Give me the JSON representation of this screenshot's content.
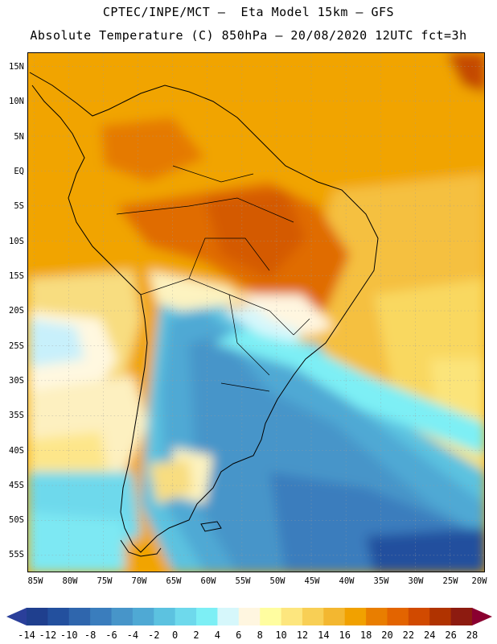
{
  "title": {
    "line1": "CPTEC/INPE/MCT –  Eta Model 15km – GFS",
    "line2": "Absolute Temperature (C) 850hPa – 20/08/2020 12UTC fct=3h"
  },
  "map": {
    "lat_labels": [
      "15N",
      "10N",
      "5N",
      "EQ",
      "5S",
      "10S",
      "15S",
      "20S",
      "25S",
      "30S",
      "35S",
      "40S",
      "45S",
      "50S",
      "55S"
    ],
    "lon_labels": [
      "85W",
      "80W",
      "75W",
      "70W",
      "65W",
      "60W",
      "55W",
      "50W",
      "45W",
      "40W",
      "35W",
      "30W",
      "25W",
      "20W"
    ],
    "lat_range": [
      -57,
      17
    ],
    "lon_range": [
      -86,
      -20
    ]
  },
  "colorbar": {
    "labels": [
      "-14",
      "-12",
      "-10",
      "-8",
      "-6",
      "-4",
      "-2",
      "0",
      "2",
      "4",
      "6",
      "8",
      "10",
      "12",
      "14",
      "16",
      "18",
      "20",
      "22",
      "24",
      "26",
      "28"
    ],
    "colors": [
      "#1f3f8e",
      "#23509e",
      "#2f66ad",
      "#3a7dbd",
      "#4795c9",
      "#4fa9d4",
      "#5cc2e0",
      "#6ed9ec",
      "#7deff5",
      "#d6f7fb",
      "#fff6e0",
      "#fffda0",
      "#fde67e",
      "#f8cf55",
      "#f3b730",
      "#f1a100",
      "#e97e00",
      "#e36400",
      "#d14a00",
      "#b03300",
      "#8d1b10"
    ],
    "low_color": "#2a3f9a",
    "high_color": "#8a0030"
  }
}
